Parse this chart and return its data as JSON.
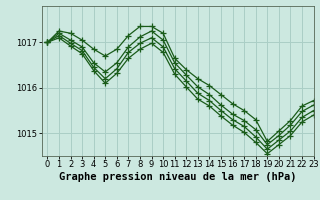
{
  "title": "Graphe pression niveau de la mer (hPa)",
  "background_color": "#cce8e0",
  "grid_color": "#aacec6",
  "line_color": "#1a5c1a",
  "xlim": [
    -0.5,
    23
  ],
  "ylim": [
    1014.5,
    1017.8
  ],
  "yticks": [
    1015,
    1016,
    1017
  ],
  "xticks": [
    0,
    1,
    2,
    3,
    4,
    5,
    6,
    7,
    8,
    9,
    10,
    11,
    12,
    13,
    14,
    15,
    16,
    17,
    18,
    19,
    20,
    21,
    22,
    23
  ],
  "series": [
    [
      1017.0,
      1017.25,
      1017.2,
      1017.05,
      1016.85,
      1016.7,
      1016.85,
      1017.15,
      1017.35,
      1017.35,
      1017.2,
      1016.65,
      1016.4,
      1016.2,
      1016.05,
      1015.85,
      1015.65,
      1015.5,
      1015.3,
      1014.82,
      1015.05,
      1015.28,
      1015.6,
      1015.72
    ],
    [
      1017.0,
      1017.2,
      1017.05,
      1016.9,
      1016.55,
      1016.35,
      1016.55,
      1016.9,
      1017.12,
      1017.25,
      1017.05,
      1016.55,
      1016.28,
      1016.02,
      1015.85,
      1015.62,
      1015.42,
      1015.28,
      1015.08,
      1014.75,
      1014.95,
      1015.18,
      1015.48,
      1015.62
    ],
    [
      1017.0,
      1017.15,
      1016.98,
      1016.82,
      1016.45,
      1016.2,
      1016.42,
      1016.78,
      1016.98,
      1017.1,
      1016.9,
      1016.42,
      1016.15,
      1015.88,
      1015.72,
      1015.5,
      1015.3,
      1015.15,
      1014.92,
      1014.65,
      1014.85,
      1015.05,
      1015.35,
      1015.5
    ],
    [
      1017.0,
      1017.1,
      1016.92,
      1016.75,
      1016.38,
      1016.1,
      1016.32,
      1016.65,
      1016.85,
      1016.98,
      1016.78,
      1016.3,
      1016.02,
      1015.75,
      1015.6,
      1015.38,
      1015.18,
      1015.02,
      1014.8,
      1014.55,
      1014.75,
      1014.95,
      1015.25,
      1015.4
    ]
  ],
  "tick_fontsize": 6,
  "title_fontsize": 7.5,
  "linewidth": 0.9,
  "markersize": 4,
  "markeredgewidth": 0.9
}
